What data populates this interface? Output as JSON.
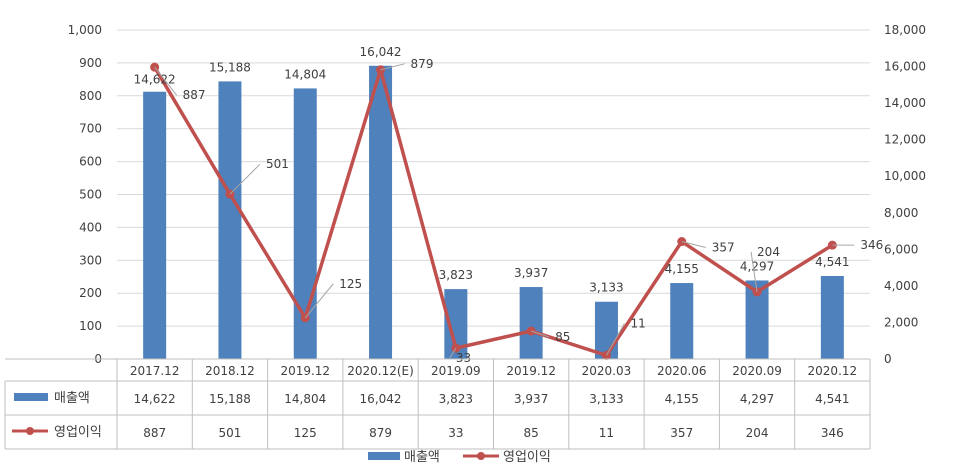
{
  "chart_data": {
    "type": "bar",
    "categories": [
      "2017.12",
      "2018.12",
      "2019.12",
      "2020.12(E)",
      "2019.09",
      "2019.12",
      "2020.03",
      "2020.06",
      "2020.09",
      "2020.12"
    ],
    "series": [
      {
        "name": "매출액",
        "type": "bar",
        "axis": "right",
        "color": "#4f81bd",
        "values": [
          14622,
          15188,
          14804,
          16042,
          3823,
          3937,
          3133,
          4155,
          4297,
          4541
        ],
        "labels": [
          "14,622",
          "15,188",
          "14,804",
          "16,042",
          "3,823",
          "3,937",
          "3,133",
          "4,155",
          "4,297",
          "4,541"
        ]
      },
      {
        "name": "영업이익",
        "type": "line",
        "axis": "left",
        "color": "#c0504d",
        "values": [
          887,
          501,
          125,
          879,
          33,
          85,
          11,
          357,
          204,
          346
        ],
        "labels": [
          "887",
          "501",
          "125",
          "879",
          "33",
          "85",
          "11",
          "357",
          "204",
          "346"
        ]
      }
    ],
    "left_axis": {
      "ylim": [
        0,
        1000
      ],
      "ticks": [
        "0",
        "100",
        "200",
        "300",
        "400",
        "500",
        "600",
        "700",
        "800",
        "900",
        "1,000"
      ]
    },
    "right_axis": {
      "ylim": [
        0,
        18000
      ],
      "ticks": [
        "0",
        "2,000",
        "4,000",
        "6,000",
        "8,000",
        "10,000",
        "12,000",
        "14,000",
        "16,000",
        "18,000"
      ]
    },
    "grid": true,
    "legend": "bottom",
    "data_table": true
  }
}
